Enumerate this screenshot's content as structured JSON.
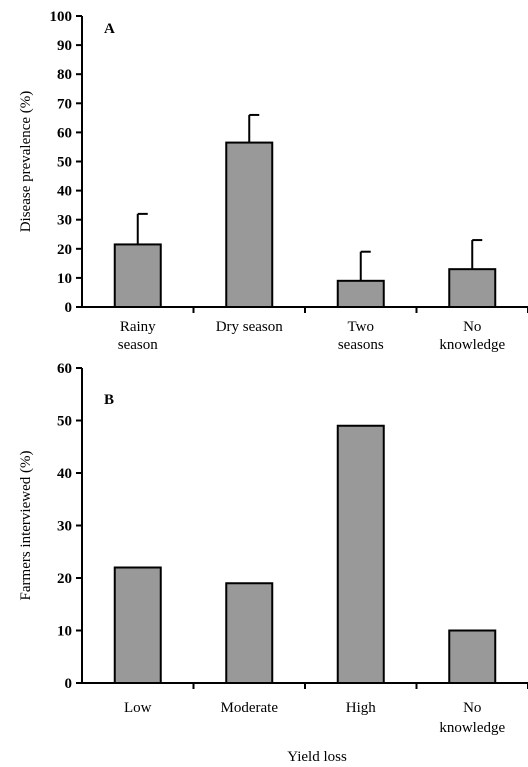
{
  "chart_data": [
    {
      "type": "bar",
      "panel_label": "A",
      "categories": [
        [
          "Rainy",
          "season"
        ],
        [
          "Dry season"
        ],
        [
          "Two",
          "seasons"
        ],
        [
          "No",
          "knowledge"
        ]
      ],
      "values": [
        21.5,
        56.5,
        9,
        13
      ],
      "error_upper": [
        10.5,
        9.5,
        10,
        10
      ],
      "ylabel": "Disease prevalence (%)",
      "xlabel": "",
      "ylim": [
        0,
        100
      ],
      "yticks": [
        0,
        10,
        20,
        30,
        40,
        50,
        60,
        70,
        80,
        90,
        100
      ],
      "bar_color": "#999999",
      "grid": false
    },
    {
      "type": "bar",
      "panel_label": "B",
      "categories": [
        [
          "Low"
        ],
        [
          "Moderate"
        ],
        [
          "High"
        ],
        [
          "No",
          "knowledge"
        ]
      ],
      "values": [
        22,
        19,
        49,
        10
      ],
      "ylabel": "Farmers interviewed (%)",
      "xlabel": "Yield loss",
      "ylim": [
        0,
        60
      ],
      "yticks": [
        0,
        10,
        20,
        30,
        40,
        50,
        60
      ],
      "bar_color": "#999999",
      "grid": false
    }
  ]
}
